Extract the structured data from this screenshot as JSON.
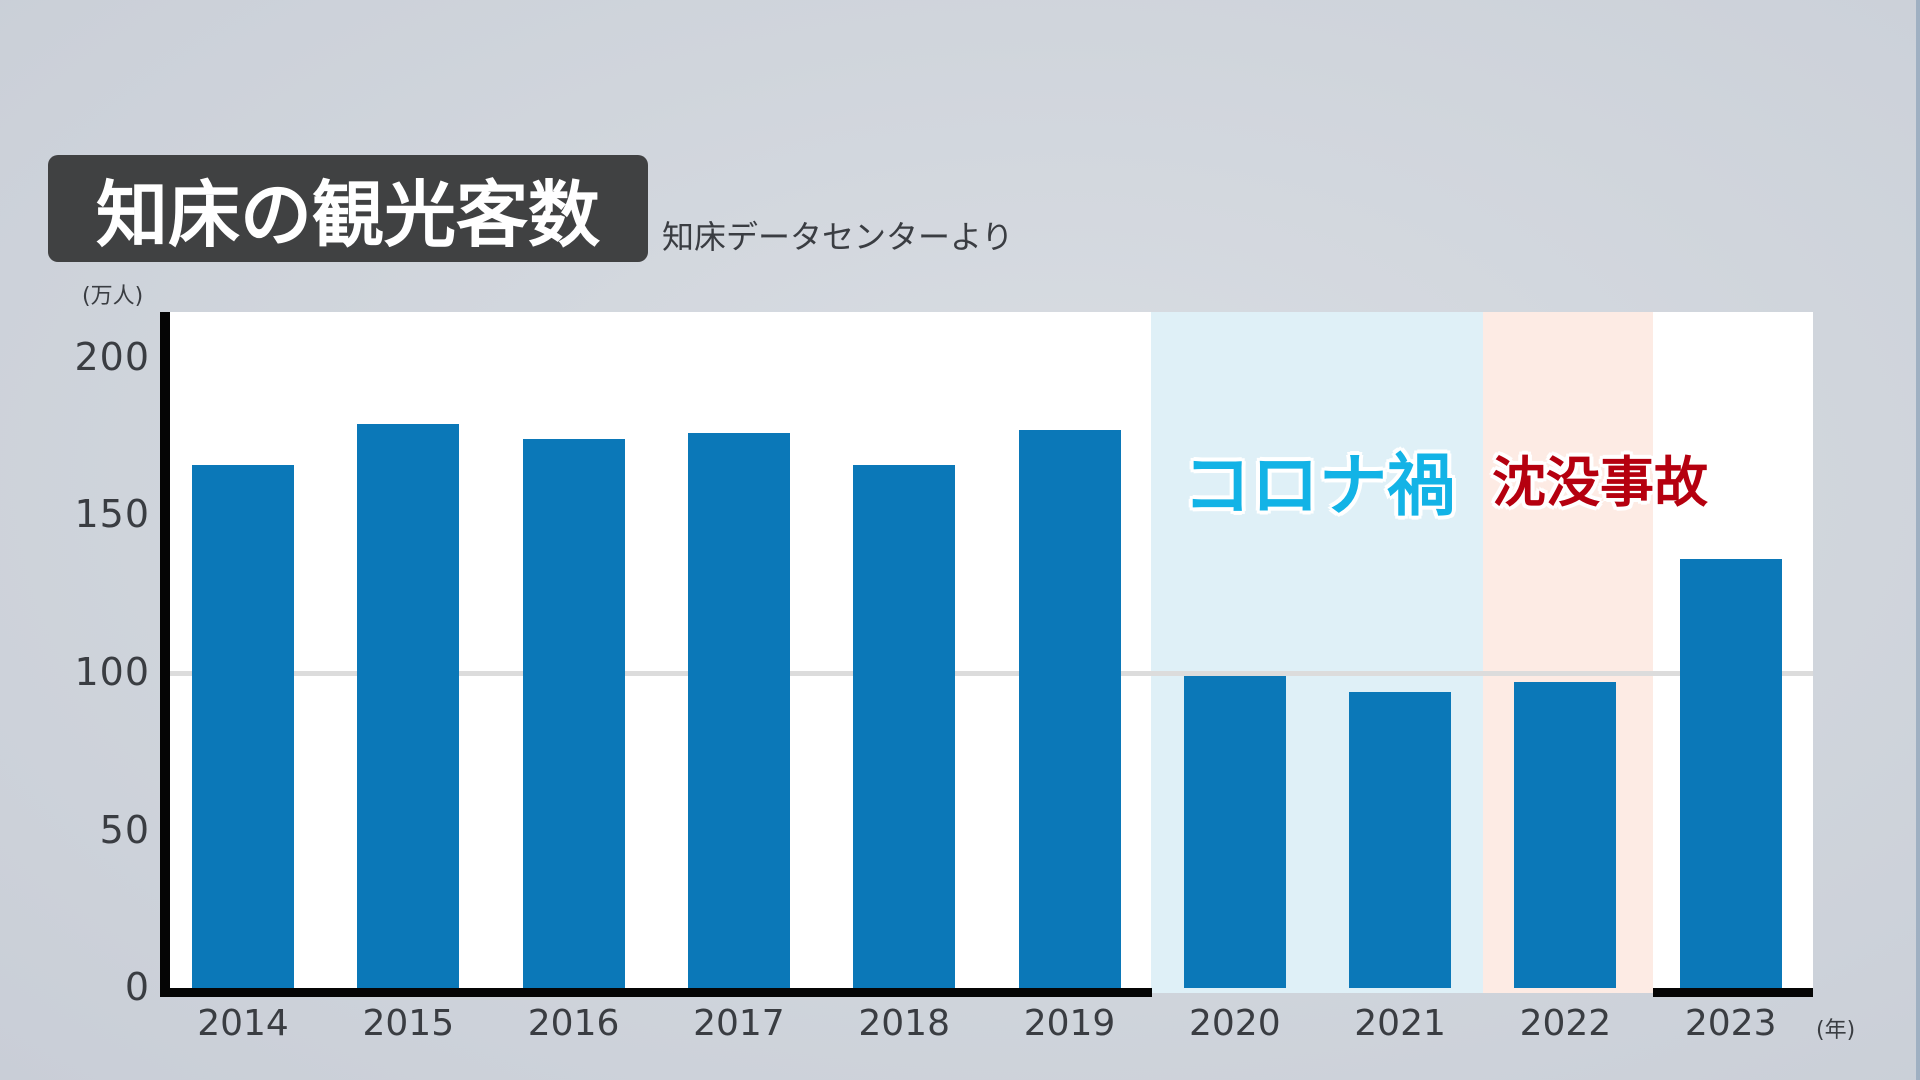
{
  "header": {
    "title": "知床の観光客数",
    "source": "知床データセンターより"
  },
  "axes": {
    "y_unit": "(万人)",
    "x_unit": "(年)",
    "y_ticks": [
      "200",
      "150",
      "100",
      "50",
      "0"
    ]
  },
  "annotations": {
    "covid": "コロナ禍",
    "accident": "沈没事故"
  },
  "colors": {
    "bar": "#0b78b8",
    "covid_band": "#dff0f7",
    "accident_band": "#fdebe4",
    "covid_text": "#13b3e6",
    "accident_text": "#b5000f",
    "title_bg": "#404142"
  },
  "chart_data": {
    "type": "bar",
    "title": "知床の観光客数",
    "subtitle": "知床データセンターより",
    "categories": [
      "2014",
      "2015",
      "2016",
      "2017",
      "2018",
      "2019",
      "2020",
      "2021",
      "2022",
      "2023"
    ],
    "values": [
      166,
      179,
      174,
      176,
      166,
      177,
      99,
      94,
      97,
      136
    ],
    "xlabel": "(年)",
    "ylabel": "(万人)",
    "ylim": [
      0,
      210
    ],
    "yticks": [
      0,
      50,
      100,
      150,
      200
    ],
    "grid": "horizontal line at 100 only",
    "shaded_regions": [
      {
        "label": "コロナ禍",
        "from": "2020",
        "to": "2021",
        "color": "#dff0f7"
      },
      {
        "label": "沈没事故",
        "from": "2022",
        "to": "2022",
        "color": "#fdebe4"
      }
    ]
  }
}
